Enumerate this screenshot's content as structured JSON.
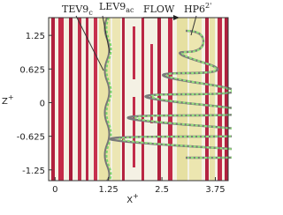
{
  "figure": {
    "annotations": [
      {
        "text": "TEV9",
        "sub": "c"
      },
      {
        "text": "LEV9",
        "sub": "ac"
      },
      {
        "text": "FLOW"
      },
      {
        "text": "HP6",
        "sup": "2'"
      }
    ],
    "x_axis": {
      "label": "X",
      "label_sup": "+",
      "lim": [
        -0.15,
        4.05
      ],
      "ticks": [
        0,
        1.25,
        2.5,
        3.75
      ]
    },
    "y_axis": {
      "label": "Z",
      "label_sup": "+",
      "lim": [
        -1.45,
        1.58
      ],
      "ticks": [
        1.25,
        0.625,
        0,
        -0.625,
        -1.25
      ]
    }
  }
}
